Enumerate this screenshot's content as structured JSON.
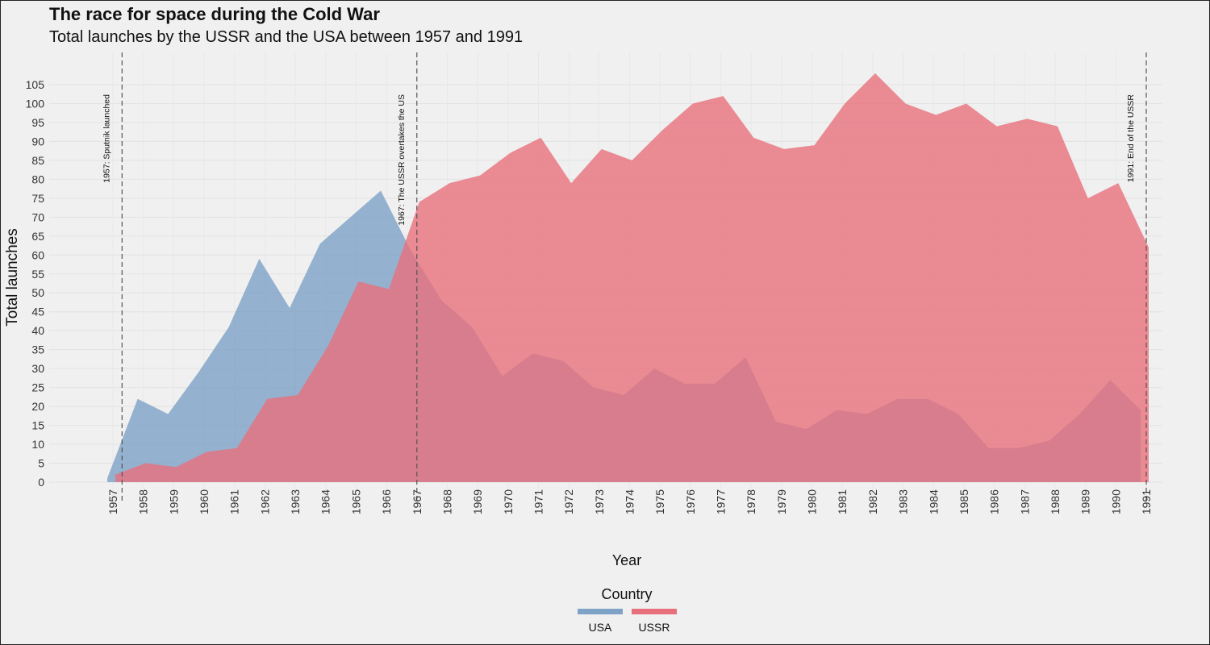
{
  "title": "The race for space during the Cold War",
  "subtitle": "Total launches by the USSR and the USA between 1957 and 1991",
  "chart_data": {
    "type": "area",
    "title": "The race for space during the Cold War",
    "subtitle": "Total launches by the USSR and the USA between 1957 and 1991",
    "xlabel": "Year",
    "ylabel": "Total launches",
    "x": [
      1957,
      1958,
      1959,
      1960,
      1961,
      1962,
      1963,
      1964,
      1965,
      1966,
      1967,
      1968,
      1969,
      1970,
      1971,
      1972,
      1973,
      1974,
      1975,
      1976,
      1977,
      1978,
      1979,
      1980,
      1981,
      1982,
      1983,
      1984,
      1985,
      1986,
      1987,
      1988,
      1989,
      1990,
      1991
    ],
    "x_tick_labels": [
      "1957",
      "1958",
      "1959",
      "1960",
      "1961",
      "1962",
      "1963",
      "1964",
      "1965",
      "1966",
      "1967",
      "1968",
      "1969",
      "1970",
      "1971",
      "1972",
      "1973",
      "1974",
      "1975",
      "1976",
      "1977",
      "1978",
      "1979",
      "1980",
      "1981",
      "1982",
      "1983",
      "1984",
      "1985",
      "1986",
      "1987",
      "1988",
      "1989",
      "1990",
      "1991"
    ],
    "y_ticks": [
      0,
      5,
      10,
      15,
      20,
      25,
      30,
      35,
      40,
      45,
      50,
      55,
      60,
      65,
      70,
      75,
      80,
      85,
      90,
      95,
      100,
      105
    ],
    "ylim": [
      0,
      105
    ],
    "grid": true,
    "legend": {
      "title": "Country",
      "position": "bottom"
    },
    "series": [
      {
        "name": "USA",
        "color": "#7fa2c7",
        "values": [
          1,
          22,
          18,
          29,
          41,
          59,
          46,
          63,
          70,
          77,
          61,
          48,
          41,
          28,
          34,
          32,
          25,
          23,
          30,
          26,
          26,
          33,
          16,
          14,
          19,
          18,
          22,
          22,
          18,
          9,
          9,
          11,
          18,
          27,
          19
        ]
      },
      {
        "name": "USSR",
        "color": "#e8707c",
        "values": [
          2,
          5,
          4,
          8,
          9,
          22,
          23,
          36,
          53,
          51,
          74,
          79,
          81,
          87,
          91,
          79,
          88,
          85,
          93,
          100,
          102,
          91,
          88,
          89,
          100,
          108,
          100,
          97,
          100,
          94,
          96,
          94,
          75,
          79,
          62
        ]
      }
    ],
    "annotations": [
      {
        "x": 1957.3,
        "text": "1957: Sputnik launched"
      },
      {
        "x": 1967,
        "text": "1967: The USSR overtakes the US"
      },
      {
        "x": 1991,
        "text": "1991: End of the USSR"
      }
    ]
  }
}
